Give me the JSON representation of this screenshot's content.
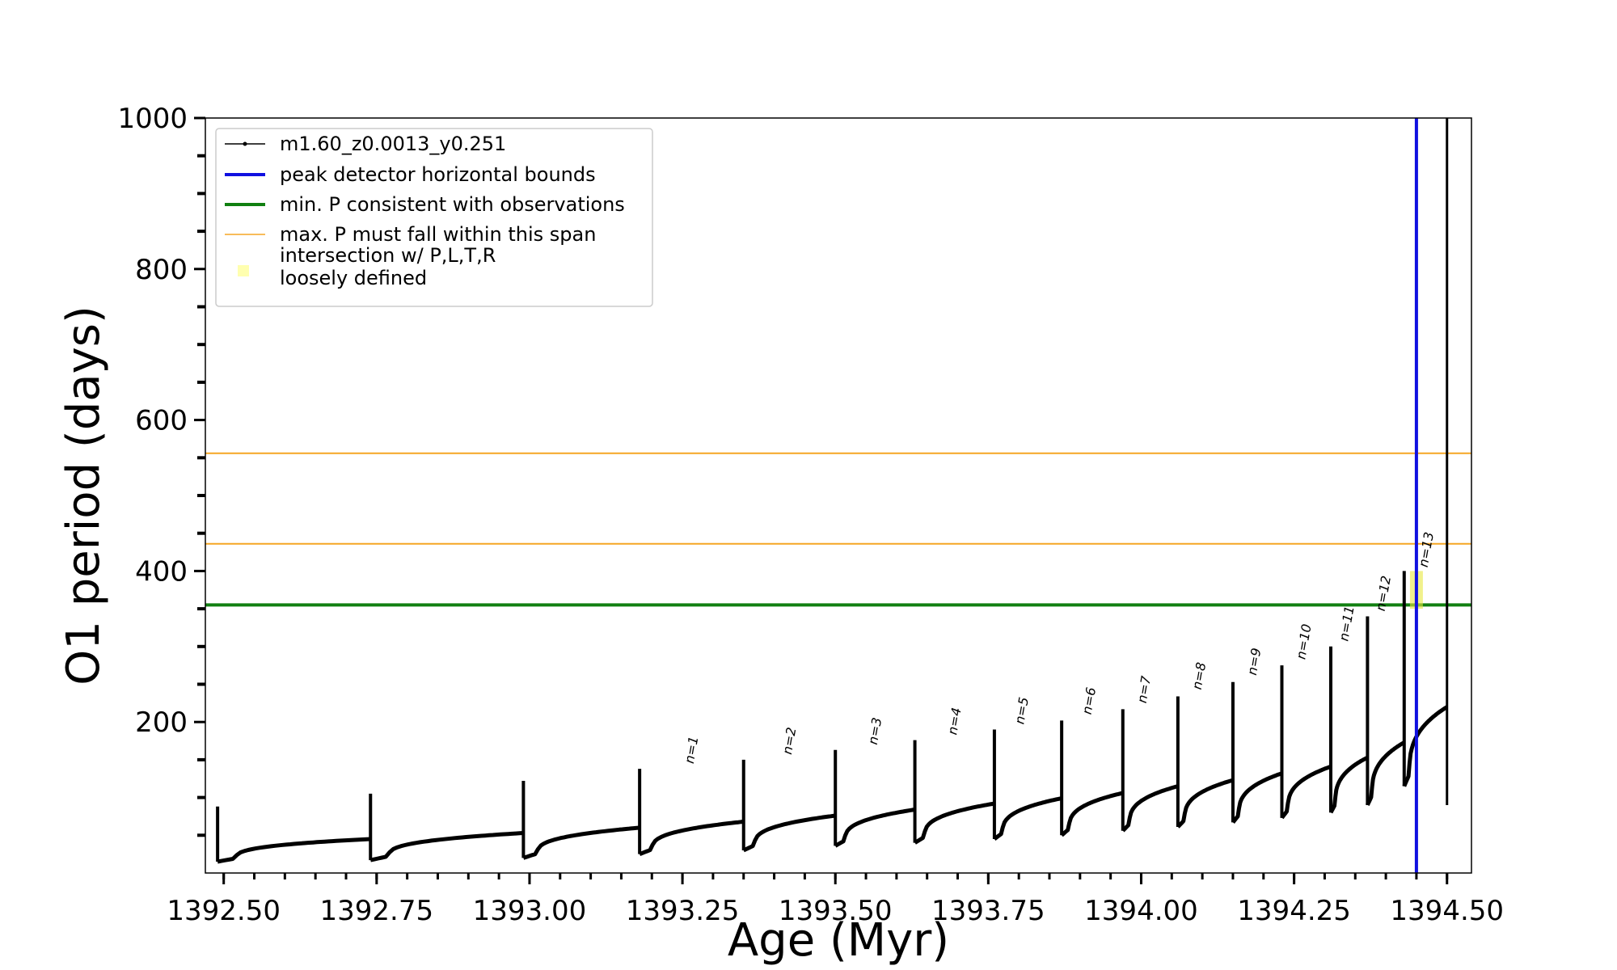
{
  "chart_data": {
    "type": "line",
    "title": "",
    "xlabel": "Age (Myr)",
    "ylabel": "O1 period (days)",
    "xlim": [
      1392.47,
      1394.54
    ],
    "ylim": [
      0,
      1000
    ],
    "x_ticks": [
      1392.5,
      1392.75,
      1393.0,
      1393.25,
      1393.5,
      1393.75,
      1394.0,
      1394.25,
      1394.5
    ],
    "x_tick_labels": [
      "1392.50",
      "1392.75",
      "1393.00",
      "1393.25",
      "1393.50",
      "1393.75",
      "1394.00",
      "1394.25",
      "1394.50"
    ],
    "y_ticks": [
      200,
      400,
      600,
      800,
      1000
    ],
    "y_tick_labels": [
      "200",
      "400",
      "600",
      "800",
      "1000"
    ],
    "y_minor_step": 50,
    "x_minor_step": 0.05,
    "grid": false,
    "legend_position": "top-left",
    "series": [
      {
        "name": "m1.60_z0.0013_y0.251",
        "color": "#000000",
        "cycles": [
          {
            "x0": 1392.49,
            "x1": 1392.74,
            "y_start": 15,
            "y_end": 45,
            "spike": 88
          },
          {
            "x0": 1392.74,
            "x1": 1392.99,
            "y_start": 17,
            "y_end": 53,
            "spike": 105
          },
          {
            "x0": 1392.99,
            "x1": 1393.18,
            "y_start": 20,
            "y_end": 60,
            "spike": 122
          },
          {
            "x0": 1393.18,
            "x1": 1393.35,
            "y_start": 25,
            "y_end": 68,
            "spike": 138
          },
          {
            "x0": 1393.35,
            "x1": 1393.5,
            "y_start": 30,
            "y_end": 76,
            "spike": 150
          },
          {
            "x0": 1393.5,
            "x1": 1393.63,
            "y_start": 36,
            "y_end": 84,
            "spike": 163
          },
          {
            "x0": 1393.63,
            "x1": 1393.76,
            "y_start": 40,
            "y_end": 92,
            "spike": 176
          },
          {
            "x0": 1393.76,
            "x1": 1393.87,
            "y_start": 45,
            "y_end": 99,
            "spike": 190
          },
          {
            "x0": 1393.87,
            "x1": 1393.97,
            "y_start": 50,
            "y_end": 106,
            "spike": 202
          },
          {
            "x0": 1393.97,
            "x1": 1394.06,
            "y_start": 56,
            "y_end": 115,
            "spike": 217
          },
          {
            "x0": 1394.06,
            "x1": 1394.15,
            "y_start": 61,
            "y_end": 123,
            "spike": 234
          },
          {
            "x0": 1394.15,
            "x1": 1394.23,
            "y_start": 67,
            "y_end": 132,
            "spike": 253
          },
          {
            "x0": 1394.23,
            "x1": 1394.31,
            "y_start": 73,
            "y_end": 141,
            "spike": 275
          },
          {
            "x0": 1394.31,
            "x1": 1394.37,
            "y_start": 80,
            "y_end": 153,
            "spike": 300
          },
          {
            "x0": 1394.37,
            "x1": 1394.43,
            "y_start": 90,
            "y_end": 173,
            "spike": 340
          },
          {
            "x0": 1394.43,
            "x1": 1394.5,
            "y_start": 115,
            "y_end": 220,
            "spike": 400
          }
        ],
        "final_x": 1394.5,
        "final_spike_ylim": 1000
      }
    ],
    "reference_lines": {
      "peak_detector_x": 1394.45,
      "min_period_y": 355,
      "max_period_span": [
        436,
        556
      ]
    },
    "intersection": {
      "x": 1394.45,
      "y_min": 350,
      "y_max": 400
    },
    "peak_labels": [
      {
        "text": "n=1",
        "x": 1393.26,
        "y": 140
      },
      {
        "text": "n=2",
        "x": 1393.42,
        "y": 152
      },
      {
        "text": "n=3",
        "x": 1393.56,
        "y": 165
      },
      {
        "text": "n=4",
        "x": 1393.69,
        "y": 178
      },
      {
        "text": "n=5",
        "x": 1393.8,
        "y": 192
      },
      {
        "text": "n=6",
        "x": 1393.91,
        "y": 205
      },
      {
        "text": "n=7",
        "x": 1394.0,
        "y": 220
      },
      {
        "text": "n=8",
        "x": 1394.09,
        "y": 238
      },
      {
        "text": "n=9",
        "x": 1394.18,
        "y": 257
      },
      {
        "text": "n=10",
        "x": 1394.26,
        "y": 278
      },
      {
        "text": "n=11",
        "x": 1394.33,
        "y": 302
      },
      {
        "text": "n=12",
        "x": 1394.39,
        "y": 342
      },
      {
        "text": "n=13",
        "x": 1394.46,
        "y": 400
      }
    ]
  },
  "legend": {
    "items": [
      {
        "label": "m1.60_z0.0013_y0.251",
        "color": "#000000",
        "kind": "line-marker"
      },
      {
        "label": "peak detector horizontal bounds",
        "color": "#1010e0",
        "kind": "line-thick"
      },
      {
        "label": "min. P consistent with observations",
        "color": "#118011",
        "kind": "line-thick"
      },
      {
        "label": "max. P must fall within this span",
        "color": "#f5a623",
        "kind": "line-thin"
      },
      {
        "label": "intersection w/ P,L,T,R",
        "label2": "loosely defined",
        "color": "#ffffb0",
        "kind": "square"
      }
    ]
  },
  "colors": {
    "series": "#000000",
    "peak_detector": "#1010e0",
    "min_period": "#118011",
    "max_span": "#f5a623",
    "intersection": "#e8e840"
  }
}
